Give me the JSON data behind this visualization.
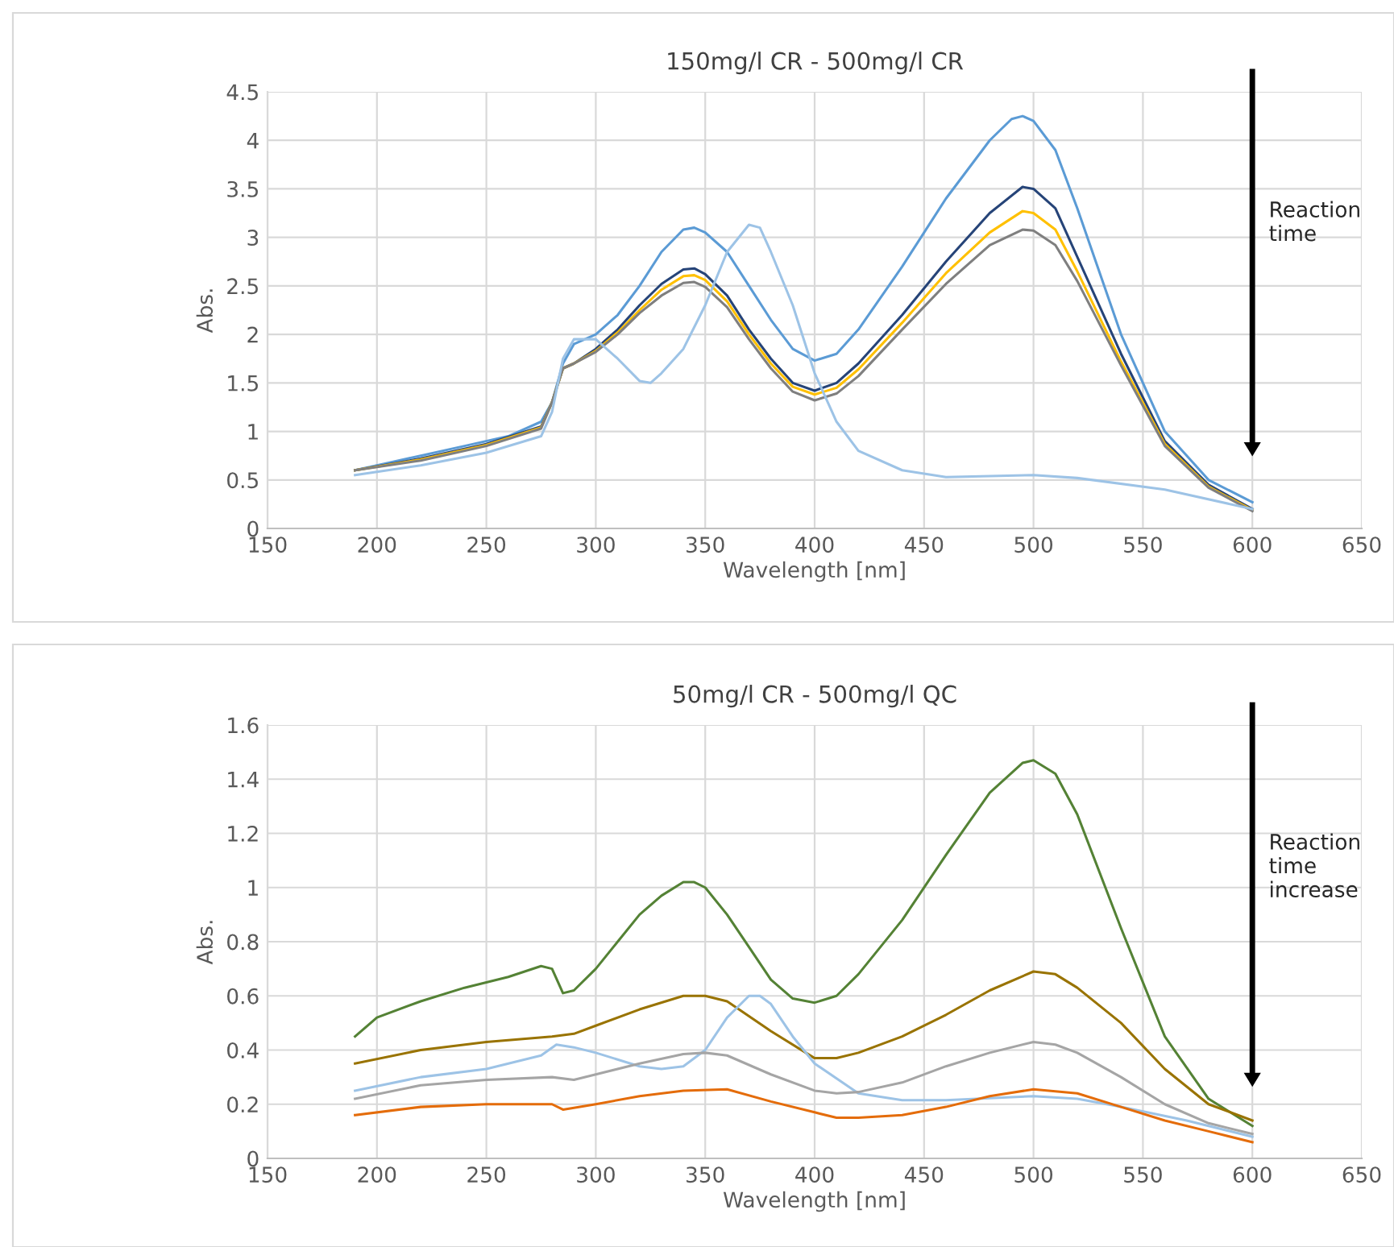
{
  "chart_data": [
    {
      "type": "line",
      "title": "150mg/l CR - 500mg/l CR",
      "xlabel": "Wavelength [nm]",
      "ylabel": "Abs.",
      "xlim": [
        150,
        650
      ],
      "xticks": [
        150,
        200,
        250,
        300,
        350,
        400,
        450,
        500,
        550,
        600,
        650
      ],
      "ylim": [
        0,
        4.5
      ],
      "yticks": [
        0,
        0.5,
        1,
        1.5,
        2,
        2.5,
        3,
        3.5,
        4,
        4.5
      ],
      "grid": true,
      "legend": false,
      "marker": "none",
      "line_style": "solid",
      "annotations": [
        "Reaction time"
      ],
      "series": [
        {
          "color": "#5b9bd5",
          "x": [
            190,
            200,
            220,
            240,
            260,
            275,
            280,
            285,
            290,
            300,
            310,
            320,
            330,
            340,
            345,
            350,
            360,
            370,
            380,
            390,
            400,
            410,
            420,
            440,
            460,
            480,
            490,
            495,
            500,
            510,
            520,
            540,
            560,
            580,
            600
          ],
          "values": [
            0.6,
            0.65,
            0.75,
            0.85,
            0.95,
            1.1,
            1.3,
            1.7,
            1.9,
            2.0,
            2.2,
            2.5,
            2.85,
            3.08,
            3.1,
            3.05,
            2.85,
            2.5,
            2.15,
            1.85,
            1.73,
            1.8,
            2.05,
            2.7,
            3.4,
            4.0,
            4.22,
            4.25,
            4.2,
            3.9,
            3.3,
            2.0,
            1.0,
            0.5,
            0.27
          ]
        },
        {
          "color": "#264478",
          "x": [
            190,
            220,
            250,
            275,
            280,
            285,
            290,
            300,
            310,
            320,
            330,
            340,
            345,
            350,
            360,
            370,
            380,
            390,
            400,
            410,
            420,
            440,
            460,
            480,
            495,
            500,
            510,
            520,
            540,
            560,
            580,
            600
          ],
          "values": [
            0.6,
            0.72,
            0.87,
            1.05,
            1.3,
            1.65,
            1.7,
            1.85,
            2.05,
            2.3,
            2.52,
            2.67,
            2.68,
            2.62,
            2.4,
            2.05,
            1.75,
            1.5,
            1.42,
            1.5,
            1.7,
            2.2,
            2.75,
            3.25,
            3.52,
            3.5,
            3.3,
            2.8,
            1.8,
            0.9,
            0.45,
            0.2
          ]
        },
        {
          "color": "#ffc000",
          "x": [
            190,
            220,
            250,
            275,
            280,
            285,
            290,
            300,
            310,
            320,
            330,
            340,
            345,
            350,
            360,
            370,
            380,
            390,
            400,
            410,
            420,
            440,
            460,
            480,
            495,
            500,
            510,
            520,
            540,
            560,
            580,
            600
          ],
          "values": [
            0.6,
            0.71,
            0.86,
            1.04,
            1.3,
            1.65,
            1.7,
            1.83,
            2.02,
            2.25,
            2.46,
            2.6,
            2.61,
            2.56,
            2.34,
            2.0,
            1.7,
            1.46,
            1.38,
            1.45,
            1.64,
            2.12,
            2.63,
            3.05,
            3.27,
            3.25,
            3.08,
            2.65,
            1.72,
            0.87,
            0.43,
            0.19
          ]
        },
        {
          "color": "#7f7f7f",
          "x": [
            190,
            220,
            250,
            275,
            280,
            285,
            290,
            300,
            310,
            320,
            330,
            340,
            345,
            350,
            360,
            370,
            380,
            390,
            400,
            410,
            420,
            440,
            460,
            480,
            495,
            500,
            510,
            520,
            540,
            560,
            580,
            600
          ],
          "values": [
            0.6,
            0.7,
            0.85,
            1.03,
            1.3,
            1.65,
            1.7,
            1.82,
            2.0,
            2.22,
            2.4,
            2.53,
            2.54,
            2.49,
            2.28,
            1.95,
            1.65,
            1.41,
            1.32,
            1.39,
            1.57,
            2.05,
            2.52,
            2.92,
            3.08,
            3.07,
            2.92,
            2.55,
            1.68,
            0.85,
            0.42,
            0.18
          ]
        },
        {
          "color": "#9dc3e6",
          "x": [
            190,
            220,
            250,
            275,
            280,
            285,
            290,
            300,
            310,
            320,
            325,
            330,
            340,
            350,
            360,
            370,
            375,
            380,
            390,
            400,
            410,
            420,
            440,
            460,
            500,
            520,
            560,
            600
          ],
          "values": [
            0.55,
            0.65,
            0.78,
            0.95,
            1.2,
            1.75,
            1.95,
            1.95,
            1.75,
            1.52,
            1.5,
            1.6,
            1.85,
            2.3,
            2.85,
            3.13,
            3.1,
            2.85,
            2.3,
            1.6,
            1.1,
            0.8,
            0.6,
            0.53,
            0.55,
            0.52,
            0.4,
            0.2
          ]
        }
      ]
    },
    {
      "type": "line",
      "title": "50mg/l CR - 500mg/l QC",
      "xlabel": "Wavelength [nm]",
      "ylabel": "Abs.",
      "xlim": [
        150,
        650
      ],
      "xticks": [
        150,
        200,
        250,
        300,
        350,
        400,
        450,
        500,
        550,
        600,
        650
      ],
      "ylim": [
        0,
        1.6
      ],
      "yticks": [
        0,
        0.2,
        0.4,
        0.6,
        0.8,
        1,
        1.2,
        1.4,
        1.6
      ],
      "grid": true,
      "legend": false,
      "marker": "none",
      "line_style": "solid",
      "annotations": [
        "Reaction time increase"
      ],
      "series": [
        {
          "color": "#548235",
          "x": [
            190,
            200,
            220,
            240,
            260,
            275,
            280,
            285,
            290,
            300,
            310,
            320,
            330,
            340,
            345,
            350,
            360,
            370,
            380,
            390,
            400,
            410,
            420,
            440,
            460,
            480,
            495,
            500,
            510,
            520,
            540,
            560,
            580,
            600
          ],
          "values": [
            0.45,
            0.52,
            0.58,
            0.63,
            0.67,
            0.71,
            0.7,
            0.61,
            0.62,
            0.7,
            0.8,
            0.9,
            0.97,
            1.02,
            1.02,
            1.0,
            0.9,
            0.78,
            0.66,
            0.59,
            0.575,
            0.6,
            0.68,
            0.88,
            1.12,
            1.35,
            1.46,
            1.47,
            1.42,
            1.27,
            0.85,
            0.45,
            0.22,
            0.12
          ]
        },
        {
          "color": "#997300",
          "x": [
            190,
            220,
            250,
            280,
            290,
            300,
            320,
            340,
            350,
            360,
            380,
            400,
            410,
            420,
            440,
            460,
            480,
            500,
            510,
            520,
            540,
            560,
            580,
            600
          ],
          "values": [
            0.35,
            0.4,
            0.43,
            0.45,
            0.46,
            0.49,
            0.55,
            0.6,
            0.6,
            0.58,
            0.47,
            0.37,
            0.37,
            0.39,
            0.45,
            0.53,
            0.62,
            0.69,
            0.68,
            0.63,
            0.5,
            0.33,
            0.2,
            0.14
          ]
        },
        {
          "color": "#9dc3e6",
          "x": [
            190,
            220,
            250,
            275,
            282,
            290,
            300,
            320,
            330,
            340,
            350,
            360,
            370,
            375,
            380,
            390,
            400,
            420,
            440,
            460,
            500,
            520,
            540,
            570,
            600
          ],
          "values": [
            0.25,
            0.3,
            0.33,
            0.38,
            0.42,
            0.41,
            0.39,
            0.34,
            0.33,
            0.34,
            0.4,
            0.52,
            0.6,
            0.6,
            0.57,
            0.45,
            0.35,
            0.24,
            0.215,
            0.215,
            0.23,
            0.22,
            0.19,
            0.14,
            0.08
          ]
        },
        {
          "color": "#a5a5a5",
          "x": [
            190,
            220,
            250,
            280,
            290,
            300,
            320,
            340,
            350,
            360,
            380,
            400,
            410,
            420,
            440,
            460,
            480,
            500,
            510,
            520,
            540,
            560,
            580,
            600
          ],
          "values": [
            0.22,
            0.27,
            0.29,
            0.3,
            0.29,
            0.31,
            0.35,
            0.385,
            0.39,
            0.38,
            0.31,
            0.25,
            0.24,
            0.245,
            0.28,
            0.34,
            0.39,
            0.43,
            0.42,
            0.39,
            0.3,
            0.2,
            0.13,
            0.09
          ]
        },
        {
          "color": "#e46c0a",
          "x": [
            190,
            220,
            250,
            280,
            285,
            300,
            320,
            340,
            360,
            380,
            400,
            410,
            420,
            440,
            460,
            480,
            500,
            520,
            540,
            560,
            580,
            600
          ],
          "values": [
            0.16,
            0.19,
            0.2,
            0.2,
            0.18,
            0.2,
            0.23,
            0.25,
            0.255,
            0.21,
            0.17,
            0.15,
            0.15,
            0.16,
            0.19,
            0.23,
            0.255,
            0.24,
            0.19,
            0.14,
            0.1,
            0.06
          ]
        }
      ]
    }
  ]
}
